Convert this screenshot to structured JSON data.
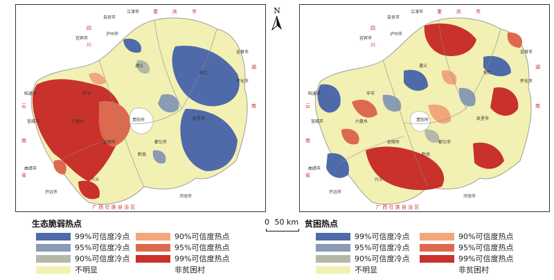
{
  "maps": [
    {
      "id": "left",
      "legend_title": "生态脆弱热点",
      "place_labels": {
        "zigong": "自贡市",
        "jiangjin": "江津市",
        "chongqing_1": "重",
        "chongqing_2": "庆",
        "chongqing_3": "市",
        "luzhou": "泸州市",
        "yibin": "宜宾市",
        "sichuan_1": "四",
        "sichuan_2": "川",
        "hunan_1": "湖",
        "hunan_2": "南",
        "jishou": "吉首市",
        "huaihua": "怀化市",
        "yunnan_1": "云",
        "yunnan_2": "南",
        "yunnan_3": "省",
        "zhaotong": "昭通市",
        "xuanwei": "宣威市",
        "qujing": "曲靖市",
        "kaiyuan": "开远市",
        "guiyang": "贵阳市",
        "zunyi": "遵义",
        "duyun": "都匀市",
        "kaili": "凯里市",
        "anshun": "安顺市",
        "liupanshui": "六盘水",
        "tongren": "铜仁",
        "bijie": "毕节",
        "xingyi": "兴义",
        "qiannan": "黔南",
        "hechi": "河池市",
        "guangxi": "广 西 壮 族 自 治 区"
      }
    },
    {
      "id": "right",
      "legend_title": "贫困热点",
      "place_labels": {
        "zigong": "自贡市",
        "jiangjin": "江津市",
        "chongqing_1": "重",
        "chongqing_2": "庆",
        "chongqing_3": "市",
        "luzhou": "泸州市",
        "yibin": "宜宾市",
        "sichuan_1": "四",
        "sichuan_2": "川",
        "hunan_1": "湖",
        "hunan_2": "南",
        "jishou": "吉首市",
        "huaihua": "怀化市",
        "yunnan_1": "云",
        "yunnan_2": "南",
        "yunnan_3": "省",
        "zhaotong": "昭通市",
        "xuanwei": "宣威市",
        "qujing": "曲靖市",
        "kaiyuan": "开远市",
        "guiyang": "贵阳市",
        "zunyi": "遵义",
        "duyun": "都匀市",
        "kaili": "凯里市",
        "anshun": "安顺市",
        "liupanshui": "六盘水",
        "tongren": "铜仁",
        "bijie": "毕节",
        "xingyi": "兴义",
        "qiannan": "黔南",
        "hechi": "河池市",
        "guangxi": "广 西 壮 族 自 治 区"
      }
    }
  ],
  "legend": {
    "cold_99": "99%可信度冷点",
    "cold_95": "95%可信度冷点",
    "cold_90": "90%可信度冷点",
    "not_significant": "不明显",
    "hot_90": "90%可信度热点",
    "hot_95": "95%可信度热点",
    "hot_99": "99%可信度热点",
    "non_poor": "非贫困村"
  },
  "colors": {
    "cold_99": "#4f6aa8",
    "cold_95": "#8a9bb4",
    "cold_90": "#b4b8a8",
    "not_significant": "#f3f0b4",
    "hot_90": "#f2a67c",
    "hot_95": "#dd6a4e",
    "hot_99": "#c8312c",
    "boundary": "#9c9c9c",
    "red_text": "#c8312c"
  },
  "north_arrow": "N",
  "scale": {
    "zero": "0",
    "distance": "50 km"
  }
}
